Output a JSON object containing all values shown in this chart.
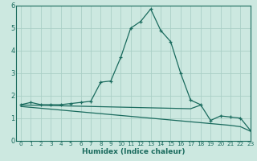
{
  "xlabel": "Humidex (Indice chaleur)",
  "background_color": "#cce8e0",
  "grid_color": "#aacfc6",
  "line_color": "#1a6b5e",
  "x_main": [
    0,
    1,
    2,
    3,
    4,
    5,
    6,
    7,
    8,
    9,
    10,
    11,
    12,
    13,
    14,
    15,
    16,
    17,
    18,
    19,
    20,
    21,
    22,
    23
  ],
  "y_main": [
    1.6,
    1.7,
    1.6,
    1.6,
    1.6,
    1.65,
    1.7,
    1.75,
    2.6,
    2.65,
    3.7,
    5.0,
    5.3,
    5.85,
    4.9,
    4.4,
    3.0,
    1.8,
    1.6,
    0.9,
    1.1,
    1.05,
    1.0,
    0.45
  ],
  "x_flat": [
    0,
    1,
    2,
    3,
    4,
    5,
    6,
    7,
    8,
    9,
    10,
    11,
    12,
    13,
    14,
    15,
    16,
    17,
    18
  ],
  "y_flat": [
    1.58,
    1.58,
    1.57,
    1.56,
    1.55,
    1.54,
    1.53,
    1.52,
    1.51,
    1.5,
    1.49,
    1.48,
    1.47,
    1.46,
    1.45,
    1.44,
    1.43,
    1.42,
    1.58
  ],
  "x_desc": [
    0,
    1,
    2,
    3,
    4,
    5,
    6,
    7,
    8,
    9,
    10,
    11,
    12,
    13,
    14,
    15,
    16,
    17,
    18,
    19,
    20,
    21,
    22,
    23
  ],
  "y_desc": [
    1.52,
    1.48,
    1.44,
    1.4,
    1.36,
    1.32,
    1.28,
    1.24,
    1.2,
    1.16,
    1.12,
    1.08,
    1.04,
    1.0,
    0.96,
    0.92,
    0.88,
    0.84,
    0.8,
    0.76,
    0.72,
    0.68,
    0.62,
    0.42
  ],
  "ylim": [
    0,
    6
  ],
  "xlim": [
    -0.5,
    23
  ],
  "yticks": [
    0,
    1,
    2,
    3,
    4,
    5,
    6
  ],
  "xticks": [
    0,
    1,
    2,
    3,
    4,
    5,
    6,
    7,
    8,
    9,
    10,
    11,
    12,
    13,
    14,
    15,
    16,
    17,
    18,
    19,
    20,
    21,
    22,
    23
  ]
}
